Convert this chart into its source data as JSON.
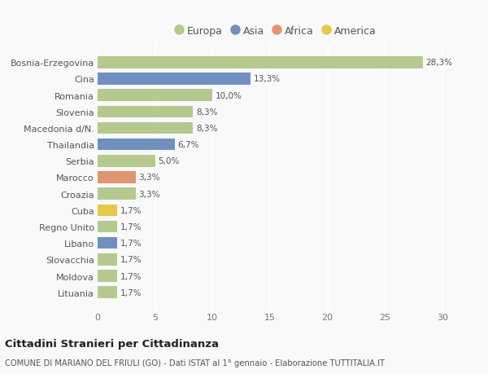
{
  "categories": [
    "Bosnia-Erzegovina",
    "Cina",
    "Romania",
    "Slovenia",
    "Macedonia d/N.",
    "Thailandia",
    "Serbia",
    "Marocco",
    "Croazia",
    "Cuba",
    "Regno Unito",
    "Libano",
    "Slovacchia",
    "Moldova",
    "Lituania"
  ],
  "values": [
    28.3,
    13.3,
    10.0,
    8.3,
    8.3,
    6.7,
    5.0,
    3.3,
    3.3,
    1.7,
    1.7,
    1.7,
    1.7,
    1.7,
    1.7
  ],
  "labels": [
    "28,3%",
    "13,3%",
    "10,0%",
    "8,3%",
    "8,3%",
    "6,7%",
    "5,0%",
    "3,3%",
    "3,3%",
    "1,7%",
    "1,7%",
    "1,7%",
    "1,7%",
    "1,7%",
    "1,7%"
  ],
  "continent": [
    "Europa",
    "Asia",
    "Europa",
    "Europa",
    "Europa",
    "Asia",
    "Europa",
    "Africa",
    "Europa",
    "America",
    "Europa",
    "Asia",
    "Europa",
    "Europa",
    "Europa"
  ],
  "colors": {
    "Europa": "#b5c98e",
    "Asia": "#7090bf",
    "Africa": "#e0956e",
    "America": "#e8c84a"
  },
  "legend_order": [
    "Europa",
    "Asia",
    "Africa",
    "America"
  ],
  "title": "Cittadini Stranieri per Cittadinanza",
  "subtitle": "COMUNE DI MARIANO DEL FRIULI (GO) - Dati ISTAT al 1° gennaio - Elaborazione TUTTITALIA.IT",
  "xlim": [
    0,
    31
  ],
  "xticks": [
    0,
    5,
    10,
    15,
    20,
    25,
    30
  ],
  "bg_color": "#f9f9f9",
  "grid_color": "#ffffff",
  "bar_height": 0.72
}
